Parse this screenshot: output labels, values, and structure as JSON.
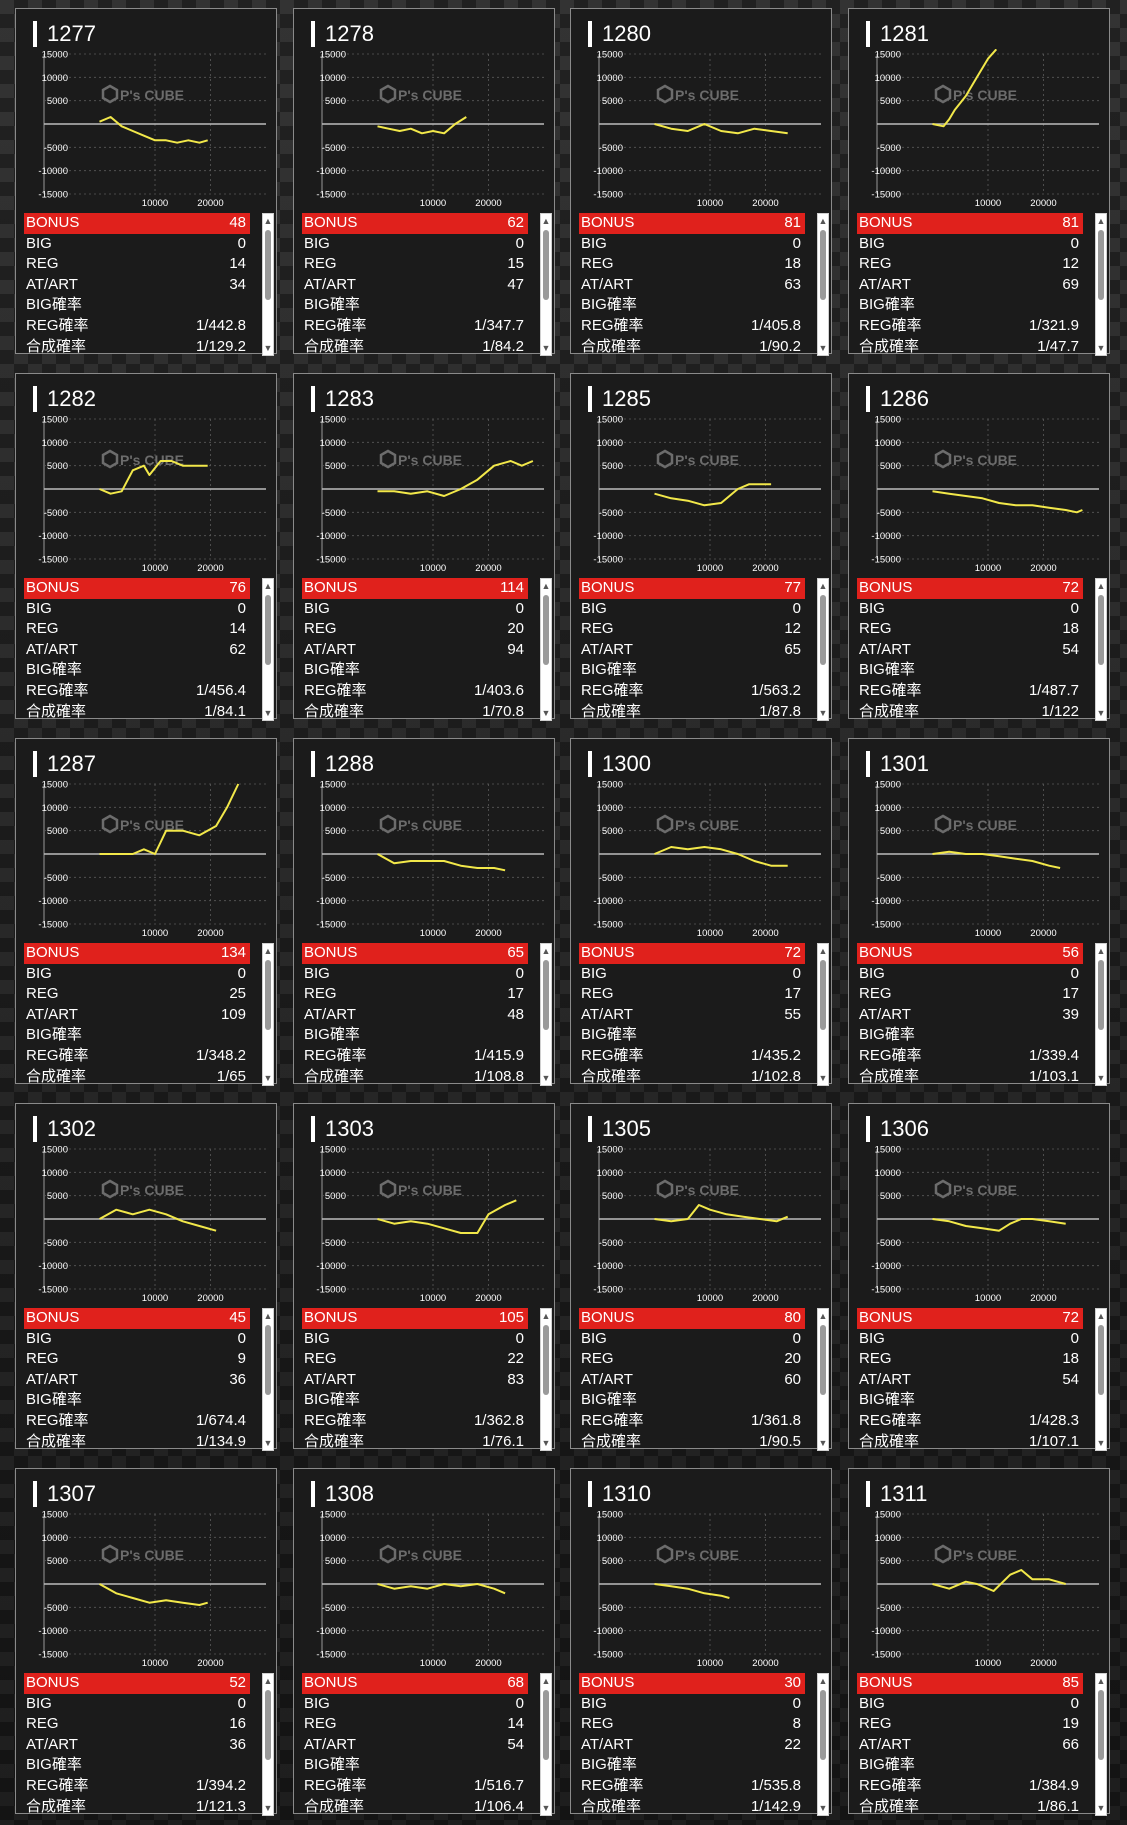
{
  "labels": {
    "bonus": "BONUS",
    "big": "BIG",
    "reg": "REG",
    "at_art": "AT/ART",
    "big_prob": "BIG確率",
    "reg_prob": "REG確率",
    "combined_prob": "合成確率"
  },
  "watermark": "P's CUBE",
  "colors": {
    "bonus_bar": "#e0211c",
    "line": "#f2e84a",
    "card_bg": "#1b1b1b"
  },
  "chart_axes": {
    "y_ticks": [
      "15000",
      "10000",
      "5000",
      "-5000",
      "-10000",
      "-15000"
    ],
    "x_ticks": [
      "10000",
      "20000"
    ],
    "ylim": [
      -15000,
      15000
    ],
    "xlim": [
      -10000,
      30000
    ]
  },
  "chart_data": [
    {
      "type": "line",
      "machine": "1277",
      "x": [
        0,
        2000,
        4000,
        6000,
        8000,
        10000,
        12000,
        14000,
        16000,
        18000,
        19500
      ],
      "y": [
        500,
        1500,
        -500,
        -1500,
        -2500,
        -3500,
        -3500,
        -4000,
        -3500,
        -4000,
        -3500
      ]
    },
    {
      "type": "line",
      "machine": "1278",
      "x": [
        0,
        2000,
        4000,
        6000,
        8000,
        10000,
        12000,
        14000,
        16000
      ],
      "y": [
        -500,
        -1000,
        -1500,
        -1000,
        -2000,
        -1500,
        -2000,
        0,
        1500
      ]
    },
    {
      "type": "line",
      "machine": "1280",
      "x": [
        0,
        3000,
        6000,
        9000,
        12000,
        15000,
        18000,
        21000,
        24000
      ],
      "y": [
        0,
        -1000,
        -1500,
        0,
        -1500,
        -2000,
        -1000,
        -1500,
        -2000
      ]
    },
    {
      "type": "line",
      "machine": "1281",
      "x": [
        0,
        2000,
        3000,
        4000,
        6000,
        8000,
        10000,
        11500
      ],
      "y": [
        0,
        -500,
        1000,
        3000,
        6000,
        10000,
        14000,
        16000
      ]
    },
    {
      "type": "line",
      "machine": "1282",
      "x": [
        0,
        2000,
        4000,
        6000,
        8000,
        9000,
        11000,
        13000,
        15000,
        17000,
        19500
      ],
      "y": [
        0,
        -1000,
        -500,
        4000,
        5000,
        3000,
        6000,
        6000,
        5000,
        5000,
        5000
      ]
    },
    {
      "type": "line",
      "machine": "1283",
      "x": [
        0,
        3000,
        6000,
        9000,
        12000,
        15000,
        18000,
        21000,
        24000,
        26000,
        28000
      ],
      "y": [
        -500,
        -500,
        -1000,
        -500,
        -1500,
        0,
        2000,
        5000,
        6000,
        5000,
        6000
      ]
    },
    {
      "type": "line",
      "machine": "1285",
      "x": [
        0,
        3000,
        6000,
        9000,
        12000,
        15000,
        17000,
        19000,
        21000
      ],
      "y": [
        -1000,
        -2000,
        -2500,
        -3500,
        -3000,
        0,
        1000,
        1000,
        1000
      ]
    },
    {
      "type": "line",
      "machine": "1286",
      "x": [
        0,
        3000,
        6000,
        9000,
        12000,
        15000,
        18000,
        21000,
        24000,
        26000,
        27000
      ],
      "y": [
        -500,
        -1000,
        -1500,
        -2000,
        -3000,
        -3500,
        -3500,
        -4000,
        -4500,
        -5000,
        -4500
      ]
    },
    {
      "type": "line",
      "machine": "1287",
      "x": [
        0,
        3000,
        6000,
        8000,
        10000,
        12000,
        15000,
        18000,
        21000,
        23000,
        25000
      ],
      "y": [
        0,
        0,
        0,
        1000,
        0,
        5000,
        5000,
        4000,
        6000,
        10000,
        15000
      ]
    },
    {
      "type": "line",
      "machine": "1288",
      "x": [
        0,
        3000,
        6000,
        9000,
        12000,
        15000,
        18000,
        21000,
        23000
      ],
      "y": [
        0,
        -2000,
        -1500,
        -1500,
        -1500,
        -2500,
        -3000,
        -3000,
        -3500
      ]
    },
    {
      "type": "line",
      "machine": "1300",
      "x": [
        0,
        3000,
        6000,
        9000,
        12000,
        15000,
        18000,
        21000,
        24000
      ],
      "y": [
        0,
        1500,
        1000,
        1500,
        1000,
        0,
        -1500,
        -2500,
        -2500
      ]
    },
    {
      "type": "line",
      "machine": "1301",
      "x": [
        0,
        3000,
        6000,
        9000,
        12000,
        15000,
        18000,
        21000,
        23000
      ],
      "y": [
        0,
        500,
        0,
        0,
        -500,
        -1000,
        -1500,
        -2500,
        -3000
      ]
    },
    {
      "type": "line",
      "machine": "1302",
      "x": [
        0,
        3000,
        6000,
        9000,
        12000,
        15000,
        18000,
        21000
      ],
      "y": [
        0,
        2000,
        1000,
        2000,
        1000,
        -500,
        -1500,
        -2500
      ]
    },
    {
      "type": "line",
      "machine": "1303",
      "x": [
        0,
        3000,
        6000,
        9000,
        12000,
        15000,
        18000,
        20000,
        23000,
        25000
      ],
      "y": [
        0,
        -1000,
        -500,
        -1000,
        -2000,
        -3000,
        -3000,
        1000,
        3000,
        4000
      ]
    },
    {
      "type": "line",
      "machine": "1305",
      "x": [
        0,
        3000,
        6000,
        8000,
        10000,
        13000,
        16000,
        19000,
        22000,
        24000
      ],
      "y": [
        0,
        -500,
        0,
        3000,
        2000,
        1000,
        500,
        0,
        -500,
        500
      ]
    },
    {
      "type": "line",
      "machine": "1306",
      "x": [
        0,
        3000,
        6000,
        9000,
        12000,
        14000,
        16000,
        18000,
        21000,
        24000
      ],
      "y": [
        0,
        -500,
        -1500,
        -2000,
        -2500,
        -1000,
        0,
        0,
        -500,
        -1000
      ]
    },
    {
      "type": "line",
      "machine": "1307",
      "x": [
        0,
        3000,
        6000,
        9000,
        12000,
        15000,
        18000,
        19500
      ],
      "y": [
        0,
        -2000,
        -3000,
        -4000,
        -3500,
        -4000,
        -4500,
        -4000
      ]
    },
    {
      "type": "line",
      "machine": "1308",
      "x": [
        0,
        3000,
        6000,
        9000,
        12000,
        15000,
        18000,
        21000,
        23000
      ],
      "y": [
        0,
        -1000,
        -500,
        -1000,
        0,
        -500,
        0,
        -1000,
        -2000
      ]
    },
    {
      "type": "line",
      "machine": "1310",
      "x": [
        0,
        3000,
        6000,
        9000,
        12000,
        13500
      ],
      "y": [
        0,
        -500,
        -1000,
        -2000,
        -2500,
        -3000
      ]
    },
    {
      "type": "line",
      "machine": "1311",
      "x": [
        0,
        3000,
        6000,
        8000,
        11000,
        14000,
        16000,
        18000,
        21000,
        24000
      ],
      "y": [
        0,
        -1000,
        500,
        0,
        -1500,
        2000,
        3000,
        1000,
        1000,
        0
      ]
    }
  ],
  "machines": [
    {
      "id": "1277",
      "bonus": "48",
      "big": "0",
      "reg": "14",
      "at_art": "34",
      "big_prob": "",
      "reg_prob": "1/442.8",
      "combined_prob": "1/129.2"
    },
    {
      "id": "1278",
      "bonus": "62",
      "big": "0",
      "reg": "15",
      "at_art": "47",
      "big_prob": "",
      "reg_prob": "1/347.7",
      "combined_prob": "1/84.2"
    },
    {
      "id": "1280",
      "bonus": "81",
      "big": "0",
      "reg": "18",
      "at_art": "63",
      "big_prob": "",
      "reg_prob": "1/405.8",
      "combined_prob": "1/90.2"
    },
    {
      "id": "1281",
      "bonus": "81",
      "big": "0",
      "reg": "12",
      "at_art": "69",
      "big_prob": "",
      "reg_prob": "1/321.9",
      "combined_prob": "1/47.7"
    },
    {
      "id": "1282",
      "bonus": "76",
      "big": "0",
      "reg": "14",
      "at_art": "62",
      "big_prob": "",
      "reg_prob": "1/456.4",
      "combined_prob": "1/84.1"
    },
    {
      "id": "1283",
      "bonus": "114",
      "big": "0",
      "reg": "20",
      "at_art": "94",
      "big_prob": "",
      "reg_prob": "1/403.6",
      "combined_prob": "1/70.8"
    },
    {
      "id": "1285",
      "bonus": "77",
      "big": "0",
      "reg": "12",
      "at_art": "65",
      "big_prob": "",
      "reg_prob": "1/563.2",
      "combined_prob": "1/87.8"
    },
    {
      "id": "1286",
      "bonus": "72",
      "big": "0",
      "reg": "18",
      "at_art": "54",
      "big_prob": "",
      "reg_prob": "1/487.7",
      "combined_prob": "1/122"
    },
    {
      "id": "1287",
      "bonus": "134",
      "big": "0",
      "reg": "25",
      "at_art": "109",
      "big_prob": "",
      "reg_prob": "1/348.2",
      "combined_prob": "1/65"
    },
    {
      "id": "1288",
      "bonus": "65",
      "big": "0",
      "reg": "17",
      "at_art": "48",
      "big_prob": "",
      "reg_prob": "1/415.9",
      "combined_prob": "1/108.8"
    },
    {
      "id": "1300",
      "bonus": "72",
      "big": "0",
      "reg": "17",
      "at_art": "55",
      "big_prob": "",
      "reg_prob": "1/435.2",
      "combined_prob": "1/102.8"
    },
    {
      "id": "1301",
      "bonus": "56",
      "big": "0",
      "reg": "17",
      "at_art": "39",
      "big_prob": "",
      "reg_prob": "1/339.4",
      "combined_prob": "1/103.1"
    },
    {
      "id": "1302",
      "bonus": "45",
      "big": "0",
      "reg": "9",
      "at_art": "36",
      "big_prob": "",
      "reg_prob": "1/674.4",
      "combined_prob": "1/134.9"
    },
    {
      "id": "1303",
      "bonus": "105",
      "big": "0",
      "reg": "22",
      "at_art": "83",
      "big_prob": "",
      "reg_prob": "1/362.8",
      "combined_prob": "1/76.1"
    },
    {
      "id": "1305",
      "bonus": "80",
      "big": "0",
      "reg": "20",
      "at_art": "60",
      "big_prob": "",
      "reg_prob": "1/361.8",
      "combined_prob": "1/90.5"
    },
    {
      "id": "1306",
      "bonus": "72",
      "big": "0",
      "reg": "18",
      "at_art": "54",
      "big_prob": "",
      "reg_prob": "1/428.3",
      "combined_prob": "1/107.1"
    },
    {
      "id": "1307",
      "bonus": "52",
      "big": "0",
      "reg": "16",
      "at_art": "36",
      "big_prob": "",
      "reg_prob": "1/394.2",
      "combined_prob": "1/121.3"
    },
    {
      "id": "1308",
      "bonus": "68",
      "big": "0",
      "reg": "14",
      "at_art": "54",
      "big_prob": "",
      "reg_prob": "1/516.7",
      "combined_prob": "1/106.4"
    },
    {
      "id": "1310",
      "bonus": "30",
      "big": "0",
      "reg": "8",
      "at_art": "22",
      "big_prob": "",
      "reg_prob": "1/535.8",
      "combined_prob": "1/142.9"
    },
    {
      "id": "1311",
      "bonus": "85",
      "big": "0",
      "reg": "19",
      "at_art": "66",
      "big_prob": "",
      "reg_prob": "1/384.9",
      "combined_prob": "1/86.1"
    }
  ]
}
